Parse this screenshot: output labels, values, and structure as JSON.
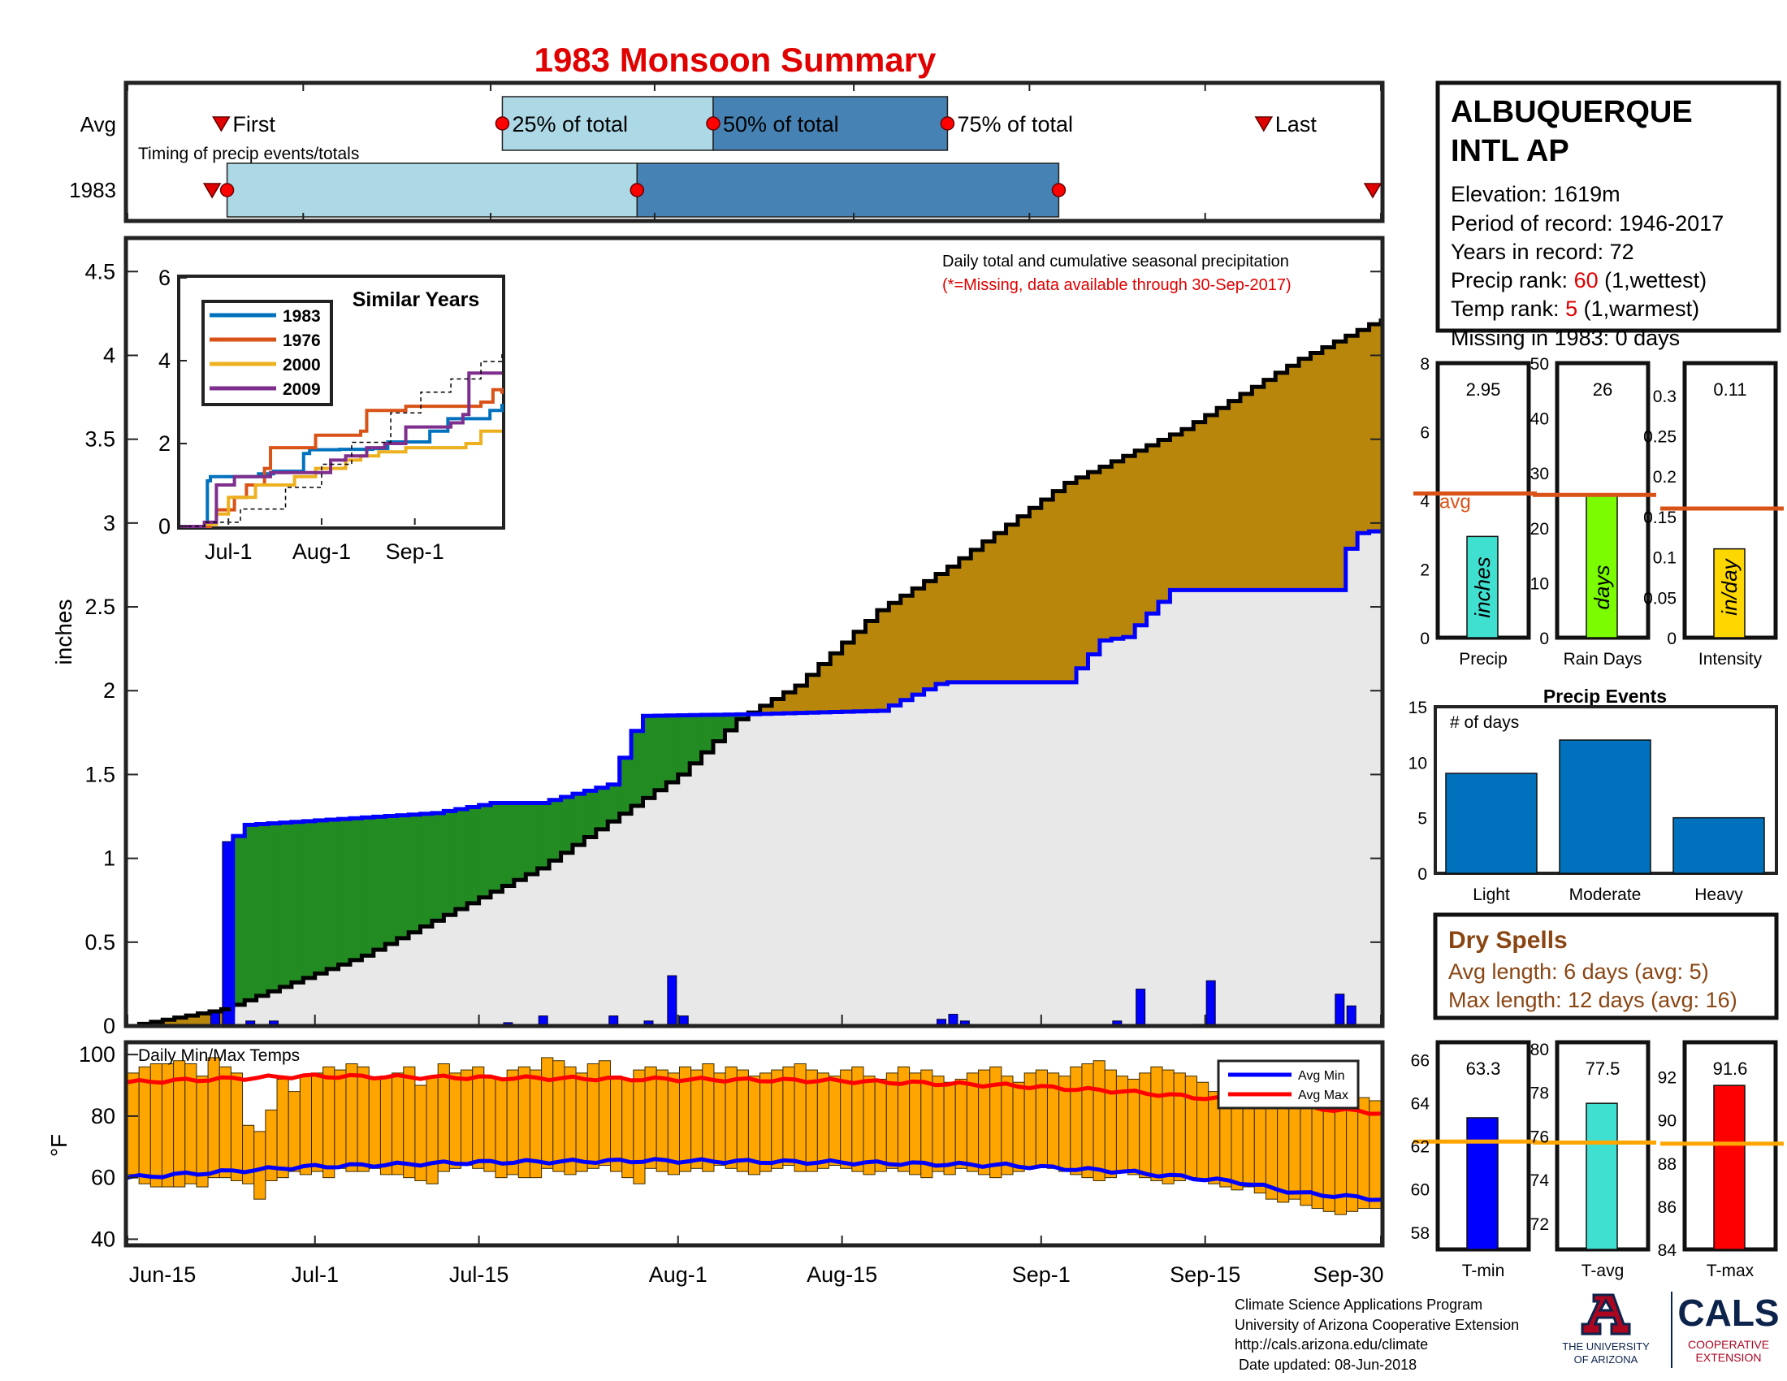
{
  "title": "1983 Monsoon Summary",
  "colors": {
    "title": "#e00000",
    "light_blue": "#add8e6",
    "steel_blue": "#4682b4",
    "marker_red": "#ff0000",
    "surplus": "#228b22",
    "deficit": "#b8860b",
    "area_fill": "#e8e8e8",
    "obs_line": "#0000ff",
    "avg_line": "#000000",
    "bar_blue": "#0072bd",
    "temp_bar": "#ffa500",
    "avg_orange": "#d95319"
  },
  "timing": {
    "label": "Timing of precip events/totals",
    "row_avg": "Avg",
    "row_year": "1983",
    "avg_labels": {
      "first": "First",
      "p25": "25% of total",
      "p50": "50% of total",
      "p75": "75% of total",
      "last": "Last"
    },
    "avg_days": {
      "first": 8,
      "p25": 32,
      "p50": 50,
      "p75": 70,
      "last": 97
    },
    "year_days": {
      "first": 7.5,
      "p25": 8.5,
      "p50": 43.5,
      "p75": 79.5,
      "last": 107
    }
  },
  "station": {
    "name_line1": "ALBUQUERQUE",
    "name_line2": "INTL AP",
    "elevation": "Elevation: 1619m",
    "period": "Period of record: 1946-2017",
    "years": "Years in record: 72",
    "precip_rank_prefix": "Precip rank: ",
    "precip_rank": "60",
    "precip_rank_suffix": " (1,wettest)",
    "temp_rank_prefix": "Temp rank: ",
    "temp_rank": "5",
    "temp_rank_suffix": " (1,warmest)",
    "missing": "Missing in 1983: 0 days"
  },
  "main_chart": {
    "annotation": "Daily total and cumulative seasonal precipitation",
    "missing_note": "(*=Missing, data available through 30-Sep-2017)",
    "ylabel": "inches",
    "ylim": [
      0,
      4.7
    ],
    "yticks": [
      "0",
      "0.5",
      "1",
      "1.5",
      "2",
      "2.5",
      "3",
      "3.5",
      "4",
      "4.5"
    ],
    "xticks": [
      "Jun-15",
      "Jul-1",
      "Jul-15",
      "Aug-1",
      "Aug-15",
      "Sep-1",
      "Sep-15",
      "Sep-30"
    ]
  },
  "chart_data": [
    {
      "type": "area",
      "title": "Daily total and cumulative seasonal precipitation",
      "ylabel": "inches",
      "x_start": "Jun-15",
      "x_end": "Sep-30",
      "ylim": [
        0,
        4.7
      ],
      "avg_cumulative": {
        "day": [
          0,
          8,
          20,
          35,
          47,
          52,
          57,
          64,
          70,
          80,
          90,
          100,
          107
        ],
        "value": [
          0,
          0.1,
          0.42,
          0.94,
          1.5,
          1.83,
          2.03,
          2.48,
          2.74,
          3.24,
          3.56,
          3.98,
          4.22
        ]
      },
      "obs_cumulative": {
        "day": [
          0,
          8,
          8.5,
          10,
          26,
          31,
          35,
          41,
          43,
          44,
          53,
          64,
          69,
          70,
          80,
          83,
          85,
          89,
          103,
          103.5,
          105,
          107
        ],
        "value": [
          0,
          0,
          1.1,
          1.2,
          1.27,
          1.33,
          1.33,
          1.44,
          1.76,
          1.85,
          1.86,
          1.88,
          2.04,
          2.05,
          2.05,
          2.3,
          2.32,
          2.6,
          2.6,
          2.8,
          2.94,
          2.96
        ]
      },
      "daily": {
        "day": [
          7,
          8,
          10,
          12,
          32,
          35,
          41,
          44,
          46,
          47,
          69,
          70,
          71,
          84,
          86,
          91,
          92,
          103,
          104
        ],
        "value": [
          0.09,
          1.1,
          0.03,
          0.03,
          0.02,
          0.06,
          0.06,
          0.03,
          0.3,
          0.06,
          0.04,
          0.07,
          0.03,
          0.03,
          0.22,
          0.01,
          0.27,
          0.19,
          0.12
        ]
      }
    },
    {
      "type": "line",
      "title": "Similar Years",
      "xticks": [
        "Jul-1",
        "Aug-1",
        "Sep-1"
      ],
      "yticks": [
        "0",
        "2",
        "4",
        "6"
      ],
      "ylim": [
        0,
        6
      ],
      "series": [
        {
          "name": "1983",
          "color": "#0072bd",
          "day": [
            0,
            8,
            9,
            10,
            26,
            31,
            41,
            43,
            53,
            64,
            69,
            83,
            89,
            103,
            107
          ],
          "value": [
            0,
            0,
            1.1,
            1.2,
            1.27,
            1.33,
            1.76,
            1.85,
            1.86,
            1.88,
            2.04,
            2.3,
            2.6,
            2.8,
            2.96
          ]
        },
        {
          "name": "1976",
          "color": "#d95319",
          "day": [
            0,
            10,
            12,
            18,
            22,
            28,
            30,
            40,
            45,
            60,
            62,
            75,
            82,
            100,
            104,
            107
          ],
          "value": [
            0,
            0.1,
            0.4,
            0.7,
            1.0,
            1.4,
            1.9,
            1.9,
            2.2,
            2.3,
            2.8,
            2.9,
            2.9,
            3.0,
            3.3,
            3.2
          ]
        },
        {
          "name": "2000",
          "color": "#edb120",
          "day": [
            0,
            8,
            12,
            16,
            25,
            38,
            45,
            55,
            60,
            66,
            75,
            95,
            100,
            107
          ],
          "value": [
            0,
            0.05,
            0.3,
            0.7,
            1.0,
            1.2,
            1.4,
            1.6,
            1.7,
            1.8,
            1.9,
            2.0,
            2.3,
            2.3
          ]
        },
        {
          "name": "2009",
          "color": "#7e2f8e",
          "day": [
            0,
            8,
            12,
            18,
            30,
            42,
            50,
            55,
            62,
            68,
            75,
            85,
            90,
            94,
            96,
            99,
            107
          ],
          "value": [
            0,
            0.1,
            1.0,
            1.2,
            1.3,
            1.3,
            1.6,
            1.7,
            1.9,
            2.0,
            2.4,
            2.4,
            2.5,
            2.7,
            3.7,
            3.7,
            3.7
          ]
        },
        {
          "name": "Avg",
          "color": "#000000",
          "day": [
            0,
            8,
            20,
            35,
            47,
            57,
            70,
            80,
            90,
            100,
            107
          ],
          "value": [
            0,
            0.1,
            0.42,
            0.94,
            1.5,
            2.03,
            2.74,
            3.24,
            3.56,
            3.98,
            4.22
          ]
        }
      ]
    },
    {
      "type": "bar",
      "title": "Precip",
      "categories": [
        "Precip"
      ],
      "values": [
        2.95
      ],
      "value_labels": [
        "2.95"
      ],
      "bar_text": "inches",
      "average": 4.2,
      "average_label": "avg",
      "ylim": [
        0,
        8
      ],
      "yticks": [
        "0",
        "2",
        "4",
        "6",
        "8"
      ],
      "color": "#40e0d0"
    },
    {
      "type": "bar",
      "title": "Rain Days",
      "categories": [
        "Rain Days"
      ],
      "values": [
        26
      ],
      "value_labels": [
        "26"
      ],
      "bar_text": "days",
      "average": 26,
      "ylim": [
        0,
        50
      ],
      "yticks": [
        "0",
        "10",
        "20",
        "30",
        "40",
        "50"
      ],
      "color": "#7cfc00"
    },
    {
      "type": "bar",
      "title": "Intensity",
      "categories": [
        "Intensity"
      ],
      "values": [
        0.11
      ],
      "value_labels": [
        "0.11"
      ],
      "bar_text": "in/day",
      "average": 0.16,
      "ylim": [
        0,
        0.34
      ],
      "yticks": [
        "0",
        "0.05",
        "0.1",
        "0.15",
        "0.2",
        "0.25",
        "0.3"
      ],
      "color": "#ffd700"
    },
    {
      "type": "bar",
      "title": "Precip Events",
      "ylabel": "# of days",
      "categories": [
        "Light",
        "Moderate",
        "Heavy"
      ],
      "values": [
        9,
        12,
        5
      ],
      "ylim": [
        0,
        15
      ],
      "yticks": [
        "0",
        "5",
        "10",
        "15"
      ]
    },
    {
      "type": "bar",
      "title": "Daily Min/Max Temps",
      "ylabel": "°F",
      "ylim": [
        38,
        104
      ],
      "yticks": [
        "40",
        "60",
        "80",
        "100"
      ],
      "series": [
        {
          "name": "Avg Min",
          "color": "#0000ff",
          "day": [
            0,
            15,
            30,
            45,
            60,
            75,
            85,
            95,
            100,
            107
          ],
          "value": [
            60,
            63.5,
            65,
            65.5,
            65,
            64,
            62,
            58.5,
            55,
            53
          ]
        },
        {
          "name": "Avg Max",
          "color": "#ff0000",
          "day": [
            0,
            15,
            30,
            45,
            60,
            75,
            85,
            95,
            100,
            107
          ],
          "value": [
            91,
            93,
            92.5,
            92,
            91.5,
            90,
            88,
            85,
            83,
            81
          ]
        }
      ],
      "daily_min": [
        61,
        58,
        57,
        57,
        57,
        58,
        57,
        60,
        60,
        59,
        58,
        53,
        59,
        60,
        62,
        61,
        62,
        60,
        63,
        62,
        62,
        63,
        61,
        61,
        60,
        59,
        58,
        62,
        63,
        64,
        63,
        62,
        60,
        61,
        60,
        60,
        63,
        62,
        61,
        62,
        63,
        64,
        62,
        60,
        58,
        63,
        62,
        61,
        62,
        63,
        62,
        64,
        63,
        62,
        61,
        62,
        63,
        64,
        62,
        62,
        63,
        64,
        63,
        62,
        61,
        62,
        63,
        62,
        61,
        60,
        62,
        61,
        63,
        62,
        61,
        60,
        61,
        62,
        63,
        64,
        63,
        62,
        61,
        60,
        59,
        60,
        62,
        61,
        60,
        59,
        58,
        59,
        60,
        59,
        58,
        57,
        56,
        57,
        55,
        53,
        52,
        53,
        51,
        50,
        49,
        48,
        49,
        50,
        50
      ],
      "daily_max": [
        94,
        96,
        97,
        97,
        98,
        97,
        93,
        99,
        96,
        94,
        77,
        75,
        82,
        92,
        88,
        93,
        94,
        96,
        95,
        97,
        96,
        92,
        93,
        94,
        96,
        90,
        93,
        97,
        94,
        95,
        96,
        93,
        92,
        95,
        96,
        95,
        99,
        98,
        96,
        94,
        97,
        98,
        93,
        92,
        95,
        96,
        95,
        94,
        96,
        95,
        97,
        94,
        96,
        95,
        93,
        94,
        95,
        96,
        97,
        95,
        94,
        93,
        95,
        96,
        93,
        92,
        94,
        96,
        94,
        95,
        93,
        91,
        92,
        94,
        95,
        96,
        93,
        91,
        94,
        95,
        94,
        93,
        96,
        97,
        98,
        95,
        93,
        92,
        94,
        96,
        95,
        94,
        93,
        91,
        88,
        87,
        90,
        86,
        88,
        87,
        85,
        84,
        88,
        87,
        86,
        85,
        84,
        86,
        85
      ]
    },
    {
      "type": "bar",
      "title": "T-min",
      "categories": [
        "T-min"
      ],
      "values": [
        63.3
      ],
      "value_labels": [
        "63.3"
      ],
      "average": 62.2,
      "ylim": [
        57.2,
        66.8
      ],
      "yticks": [
        "58",
        "60",
        "62",
        "64",
        "66"
      ],
      "color": "#0000ff"
    },
    {
      "type": "bar",
      "title": "T-avg",
      "categories": [
        "T-avg"
      ],
      "values": [
        77.5
      ],
      "value_labels": [
        "77.5"
      ],
      "average": 75.7,
      "ylim": [
        70.8,
        80.3
      ],
      "yticks": [
        "72",
        "74",
        "76",
        "78",
        "80"
      ],
      "color": "#40e0d0"
    },
    {
      "type": "bar",
      "title": "T-max",
      "categories": [
        "T-max"
      ],
      "values": [
        91.6
      ],
      "value_labels": [
        "91.6"
      ],
      "average": 88.9,
      "ylim": [
        84,
        93.6
      ],
      "yticks": [
        "84",
        "86",
        "88",
        "90",
        "92"
      ],
      "color": "#ff0000"
    }
  ],
  "dry_spells": {
    "title": "Dry Spells",
    "avg": "Avg length: 6 days (avg: 5)",
    "max": "Max length: 12 days (avg: 16)"
  },
  "footer": {
    "line1": "Climate Science Applications Program",
    "line2": "University of Arizona Cooperative Extension",
    "line3": "http://cals.arizona.edu/climate",
    "line4": " Date updated: 08-Jun-2018",
    "ua_line1": "THE UNIVERSITY",
    "ua_line2": "OF ARIZONA",
    "cals": "CALS",
    "cals_line1": "COOPERATIVE",
    "cals_line2": "EXTENSION"
  }
}
